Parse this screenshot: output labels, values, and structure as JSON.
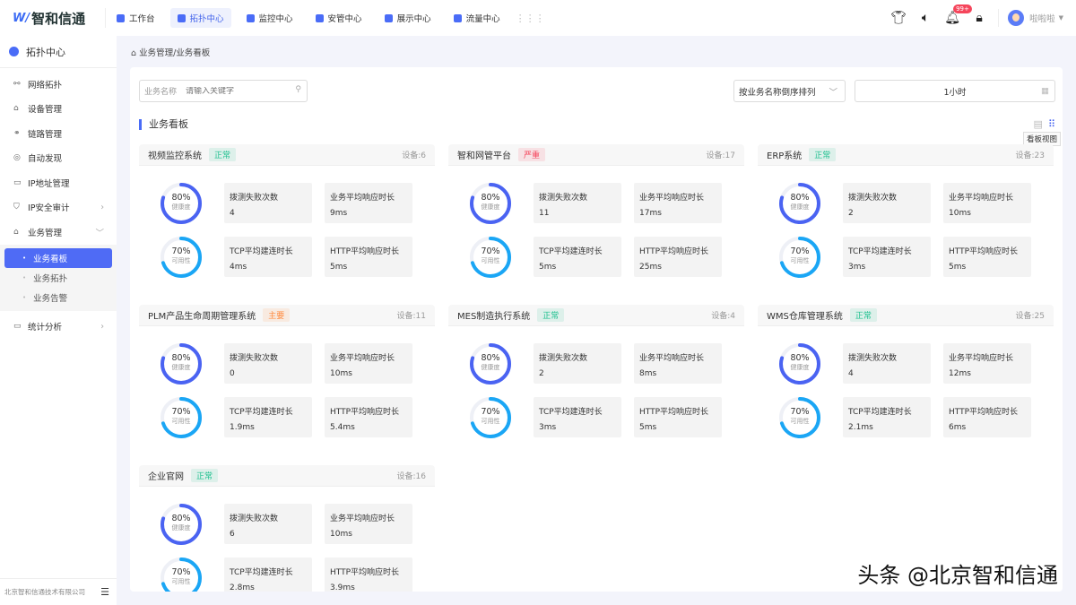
{
  "header": {
    "logo_text": "智和信通",
    "nav": [
      {
        "label": "工作台",
        "icon": "home-icon"
      },
      {
        "label": "拓扑中心",
        "icon": "topology-icon",
        "active": true
      },
      {
        "label": "监控中心",
        "icon": "monitor-icon"
      },
      {
        "label": "安管中心",
        "icon": "shield-icon"
      },
      {
        "label": "展示中心",
        "icon": "display-icon"
      },
      {
        "label": "流量中心",
        "icon": "traffic-icon"
      }
    ],
    "notification_badge": "99+",
    "username": "啦啦啦"
  },
  "sidebar": {
    "title": "拓扑中心",
    "items": [
      {
        "label": "网络拓扑",
        "icon": "topology-icon"
      },
      {
        "label": "设备管理",
        "icon": "device-icon"
      },
      {
        "label": "链路管理",
        "icon": "link-icon"
      },
      {
        "label": "自动发现",
        "icon": "compass-icon"
      },
      {
        "label": "IP地址管理",
        "icon": "monitor-icon"
      },
      {
        "label": "IP安全审计",
        "icon": "shield-icon"
      },
      {
        "label": "业务管理",
        "icon": "business-icon"
      }
    ],
    "sub_items": [
      "业务看板",
      "业务拓扑",
      "业务告警"
    ],
    "last_item": {
      "label": "统计分析",
      "icon": "chart-icon"
    },
    "footer": "北京智和信通技术有限公司"
  },
  "breadcrumb": "业务管理/业务看板",
  "filters": {
    "search_label": "业务名称",
    "search_placeholder": "请输入关键字",
    "sort": "按业务名称倒序排列",
    "time": "1小时"
  },
  "section_title": "业务看板",
  "view_tooltip": "看板视图",
  "labels": {
    "health": "健康度",
    "availability": "可用性",
    "m1": "拨测失败次数",
    "m2": "业务平均响应时长",
    "m3": "TCP平均建连时长",
    "m4": "HTTP平均响应时长"
  },
  "status_colors": {
    "正常": "#1dbf8e",
    "严重": "#f5455b",
    "主要": "#ff8a3d"
  },
  "cards": [
    {
      "name": "视频监控系统",
      "status": "正常",
      "devices": "设备:6",
      "health": 80,
      "availability": 70,
      "m1": "4",
      "m2": "9ms",
      "m3": "4ms",
      "m4": "5ms"
    },
    {
      "name": "智和网管平台",
      "status": "严重",
      "devices": "设备:17",
      "health": 80,
      "availability": 70,
      "m1": "11",
      "m2": "17ms",
      "m3": "5ms",
      "m4": "25ms"
    },
    {
      "name": "ERP系统",
      "status": "正常",
      "devices": "设备:23",
      "health": 80,
      "availability": 70,
      "m1": "2",
      "m2": "10ms",
      "m3": "3ms",
      "m4": "5ms"
    },
    {
      "name": "PLM产品生命周期管理系统",
      "status": "主要",
      "devices": "设备:11",
      "health": 80,
      "availability": 70,
      "m1": "0",
      "m2": "10ms",
      "m3": "1.9ms",
      "m4": "5.4ms"
    },
    {
      "name": "MES制造执行系统",
      "status": "正常",
      "devices": "设备:4",
      "health": 80,
      "availability": 70,
      "m1": "2",
      "m2": "8ms",
      "m3": "3ms",
      "m4": "5ms"
    },
    {
      "name": "WMS仓库管理系统",
      "status": "正常",
      "devices": "设备:25",
      "health": 80,
      "availability": 70,
      "m1": "4",
      "m2": "12ms",
      "m3": "2.1ms",
      "m4": "6ms"
    },
    {
      "name": "企业官网",
      "status": "正常",
      "devices": "设备:16",
      "health": 80,
      "availability": 70,
      "m1": "6",
      "m2": "10ms",
      "m3": "2.8ms",
      "m4": "3.9ms"
    }
  ],
  "watermark": "头条 @北京智和信通"
}
